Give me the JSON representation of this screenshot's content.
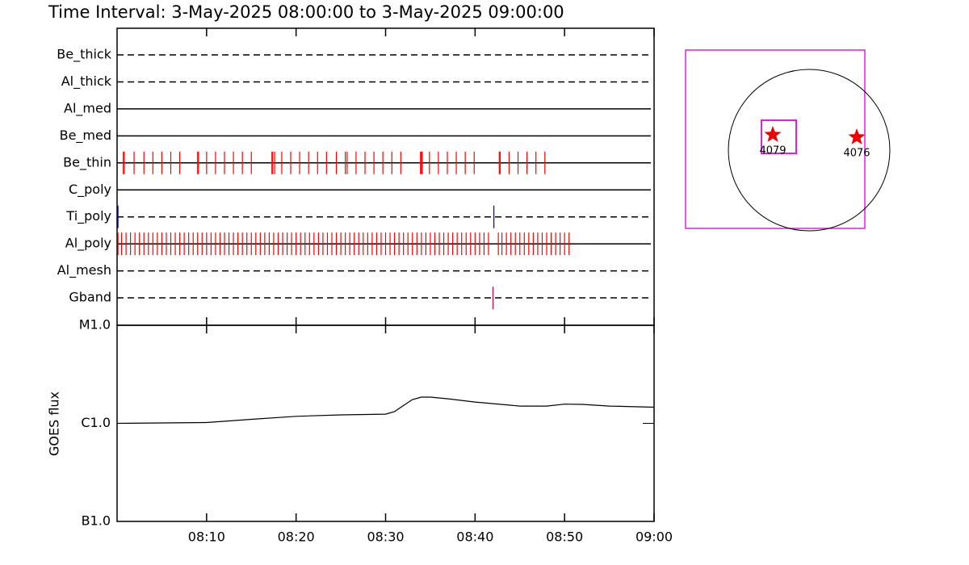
{
  "chart_data": [
    {
      "type": "timeline",
      "title": "Time Interval:  3-May-2025 08:00:00 to  3-May-2025 09:00:00",
      "xlim": [
        0,
        60
      ],
      "rows": [
        {
          "label": "Be_thick",
          "style": "dashed",
          "color": "#ff0000",
          "events": []
        },
        {
          "label": "Al_thick",
          "style": "dashed",
          "color": "#ff0000",
          "events": []
        },
        {
          "label": "Al_med",
          "style": "solid",
          "color": "#ff0000",
          "events": []
        },
        {
          "label": "Be_med",
          "style": "solid",
          "color": "#ff0000",
          "events": []
        },
        {
          "label": "Be_thin",
          "style": "solid",
          "color": "#ff0000",
          "events": [
            0.7,
            0.8,
            1.9,
            3.0,
            4.0,
            5.0,
            6.0,
            7.0,
            9.0,
            9.1,
            10.0,
            11.0,
            12.0,
            13.0,
            14.0,
            15.0,
            17.3,
            17.4,
            17.6,
            18.4,
            19.4,
            20.4,
            21.4,
            22.4,
            23.4,
            24.5,
            25.5,
            25.7,
            26.7,
            27.7,
            28.7,
            29.7,
            30.7,
            31.7,
            33.9,
            34.0,
            34.1,
            34.9,
            35.9,
            36.9,
            37.9,
            38.9,
            39.9,
            42.7,
            42.8,
            43.8,
            44.8,
            45.8,
            46.8,
            47.8
          ]
        },
        {
          "label": "C_poly",
          "style": "solid",
          "color": "#ff0000",
          "events": []
        },
        {
          "label": "Ti_poly",
          "style": "dashed",
          "color": "#0000cc",
          "events": [
            0.1,
            42.1
          ]
        },
        {
          "label": "Al_poly",
          "style": "solid",
          "color": "#ff0000",
          "events": [
            0.1,
            0.5,
            1.0,
            1.5,
            2.0,
            2.5,
            3.0,
            3.5,
            4.0,
            4.5,
            5.0,
            5.5,
            6.0,
            6.5,
            7.0,
            7.5,
            8.0,
            8.5,
            9.0,
            9.5,
            10.0,
            10.5,
            11.0,
            11.5,
            12.0,
            12.5,
            13.0,
            13.5,
            14.0,
            14.5,
            15.0,
            15.5,
            16.0,
            16.5,
            17.0,
            17.5,
            18.0,
            18.5,
            19.0,
            19.5,
            20.0,
            20.5,
            21.0,
            21.5,
            22.0,
            22.5,
            23.0,
            23.5,
            24.0,
            24.5,
            25.0,
            25.5,
            26.0,
            26.5,
            27.0,
            27.5,
            28.0,
            28.5,
            29.0,
            29.5,
            30.0,
            30.5,
            31.0,
            31.5,
            32.0,
            32.5,
            33.0,
            33.5,
            34.0,
            34.5,
            35.0,
            35.5,
            36.0,
            36.5,
            37.0,
            37.5,
            38.0,
            38.5,
            39.0,
            39.5,
            40.0,
            40.5,
            41.0,
            41.5,
            42.6,
            43.0,
            43.5,
            44.0,
            44.5,
            45.0,
            45.5,
            46.0,
            46.5,
            47.0,
            47.5,
            48.0,
            48.5,
            49.0,
            49.5,
            50.0,
            50.5
          ]
        },
        {
          "label": "Al_mesh",
          "style": "dashed",
          "color": "#ff0000",
          "events": []
        },
        {
          "label": "Gband",
          "style": "dashed",
          "color": "#cc0044",
          "events": [
            42.0
          ]
        }
      ]
    },
    {
      "type": "line",
      "ylabel": "GOES flux",
      "log_scale": true,
      "xlim": [
        0,
        60
      ],
      "xticks": [
        {
          "value": 10,
          "label": "08:10"
        },
        {
          "value": 20,
          "label": "08:20"
        },
        {
          "value": 30,
          "label": "08:30"
        },
        {
          "value": 40,
          "label": "08:40"
        },
        {
          "value": 50,
          "label": "08:50"
        },
        {
          "value": 60,
          "label": "09:00"
        }
      ],
      "ylim": [
        1e-07,
        1e-05
      ],
      "yticks": [
        {
          "value": 1e-07,
          "label": "B1.0"
        },
        {
          "value": 1e-06,
          "label": "C1.0"
        },
        {
          "value": 1e-05,
          "label": "M1.0"
        }
      ],
      "color": "#000000",
      "x": [
        0,
        5,
        10,
        15,
        20,
        25,
        30,
        31,
        32,
        33,
        34,
        35,
        37,
        40,
        45,
        48,
        50,
        52,
        55,
        60
      ],
      "values": [
        1e-06,
        1.01e-06,
        1.02e-06,
        1.1e-06,
        1.18e-06,
        1.22e-06,
        1.24e-06,
        1.32e-06,
        1.52e-06,
        1.75e-06,
        1.85e-06,
        1.85e-06,
        1.78e-06,
        1.65e-06,
        1.5e-06,
        1.5e-06,
        1.57e-06,
        1.56e-06,
        1.5e-06,
        1.46e-06
      ]
    },
    {
      "type": "map",
      "labels": [
        "4079",
        "4076"
      ]
    }
  ]
}
